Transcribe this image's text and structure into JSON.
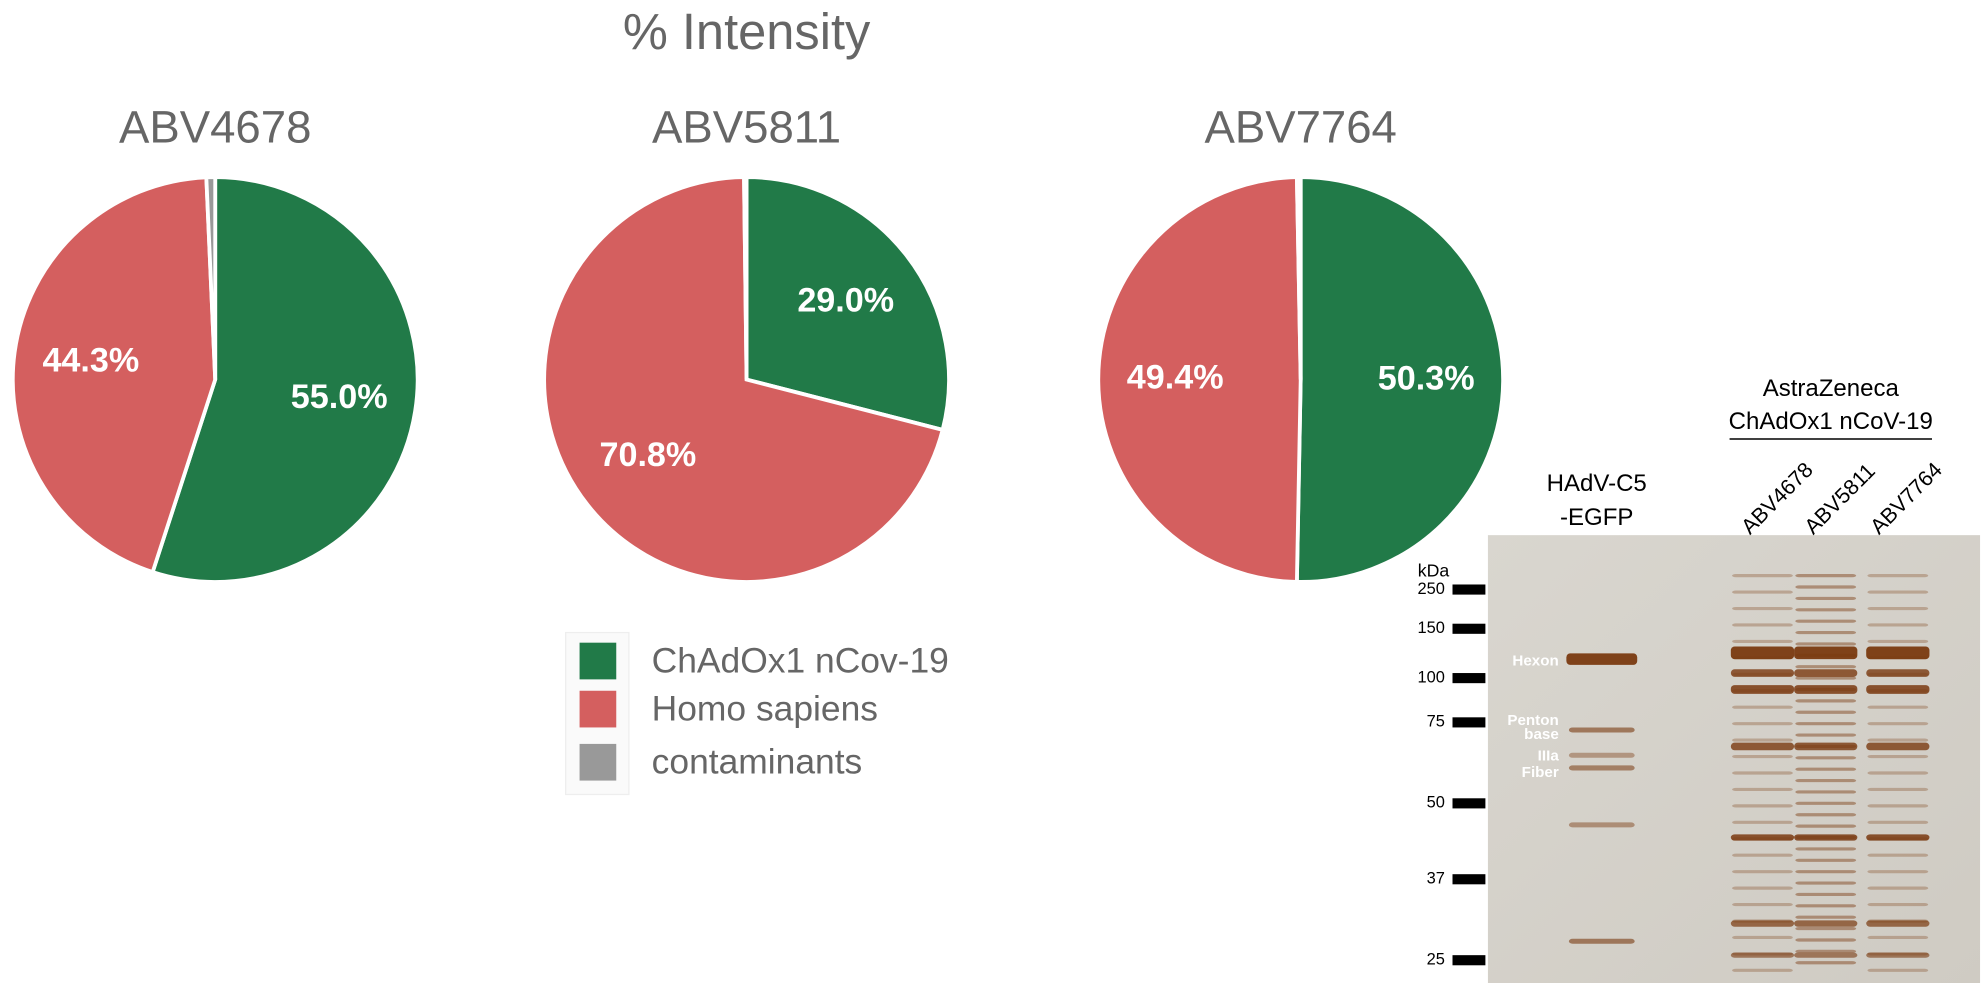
{
  "title": "% Intensity",
  "legend": {
    "labels": [
      "ChAdOx1 nCov-19",
      "Homo sapiens",
      "contaminants"
    ],
    "colors": [
      "#217a48",
      "#d45f5f",
      "#999999"
    ]
  },
  "chart_data": [
    {
      "type": "pie",
      "title": "ABV4678",
      "values": [
        55.0,
        44.3,
        0.7
      ],
      "value_labels": [
        "55.0%",
        "44.3%",
        null
      ]
    },
    {
      "type": "pie",
      "title": "ABV5811",
      "values": [
        29.0,
        70.8,
        0.2
      ],
      "value_labels": [
        "29.0%",
        "70.8%",
        null
      ]
    },
    {
      "type": "pie",
      "title": "ABV7764",
      "values": [
        50.3,
        49.4,
        0.3
      ],
      "value_labels": [
        "50.3%",
        "49.4%",
        null
      ]
    }
  ],
  "gel": {
    "unit": "kDa",
    "markers": [
      "250",
      "150",
      "100",
      "75",
      "50",
      "37",
      "25"
    ],
    "control_label": [
      "HAdV-C5",
      "-EGFP"
    ],
    "group_label": [
      "AstraZeneca",
      "ChAdOx1 nCoV-19"
    ],
    "lanes": [
      "ABV4678",
      "ABV5811",
      "ABV7764"
    ],
    "band_labels": [
      "Hexon",
      "Penton",
      "base",
      "IIIa",
      "Fiber"
    ]
  }
}
